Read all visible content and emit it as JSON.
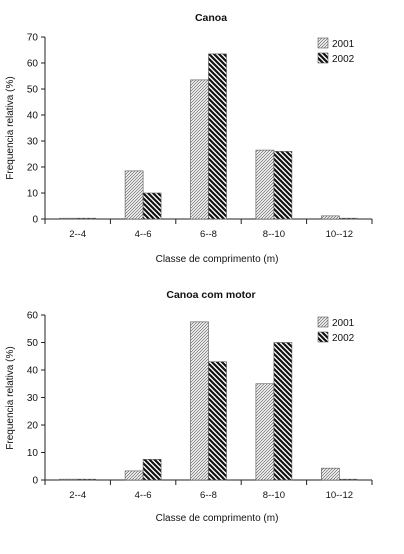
{
  "chart_data": [
    {
      "type": "bar",
      "title": "Canoa",
      "xlabel": "Classe de comprimento (m)",
      "ylabel": "Frequencia relativa (%)",
      "categories": [
        "2--4",
        "4--6",
        "6--8",
        "8--10",
        "10--12"
      ],
      "ylim": [
        0,
        70
      ],
      "yticks": [
        "0",
        "10",
        "20",
        "30",
        "40",
        "50",
        "60",
        "70"
      ],
      "grid": false,
      "legend_position": "top-right",
      "series": [
        {
          "name": "2001",
          "values": [
            0.2,
            18.5,
            53.5,
            26.5,
            1.2
          ]
        },
        {
          "name": "2002",
          "values": [
            0.2,
            10,
            63.5,
            26,
            0.2
          ]
        }
      ]
    },
    {
      "type": "bar",
      "title": "Canoa com motor",
      "xlabel": "Classe de comprimento (m)",
      "ylabel": "Frequencia relativa (%)",
      "categories": [
        "2--4",
        "4--6",
        "6--8",
        "8--10",
        "10--12"
      ],
      "ylim": [
        0,
        60
      ],
      "yticks": [
        "0",
        "10",
        "20",
        "30",
        "40",
        "50",
        "60"
      ],
      "grid": false,
      "legend_position": "top-right",
      "series": [
        {
          "name": "2001",
          "values": [
            0.3,
            3.3,
            57.5,
            35,
            4.3
          ]
        },
        {
          "name": "2002",
          "values": [
            0,
            7.5,
            43,
            50,
            0
          ]
        }
      ]
    }
  ],
  "colors": {
    "axis": "#222222",
    "bar_outline": "#444444",
    "dark_hatch": "#111111",
    "light_hatch": "#777777"
  }
}
